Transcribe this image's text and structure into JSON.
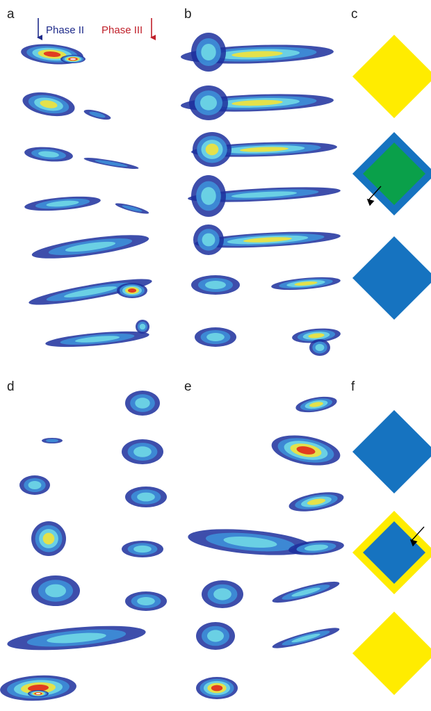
{
  "panels": [
    {
      "label": "a"
    },
    {
      "label": "b"
    },
    {
      "label": "c"
    },
    {
      "label": "d"
    },
    {
      "label": "e"
    },
    {
      "label": "f"
    }
  ],
  "annotations": {
    "phase_2": "Phase II",
    "phase_3": "Phase III"
  }
}
